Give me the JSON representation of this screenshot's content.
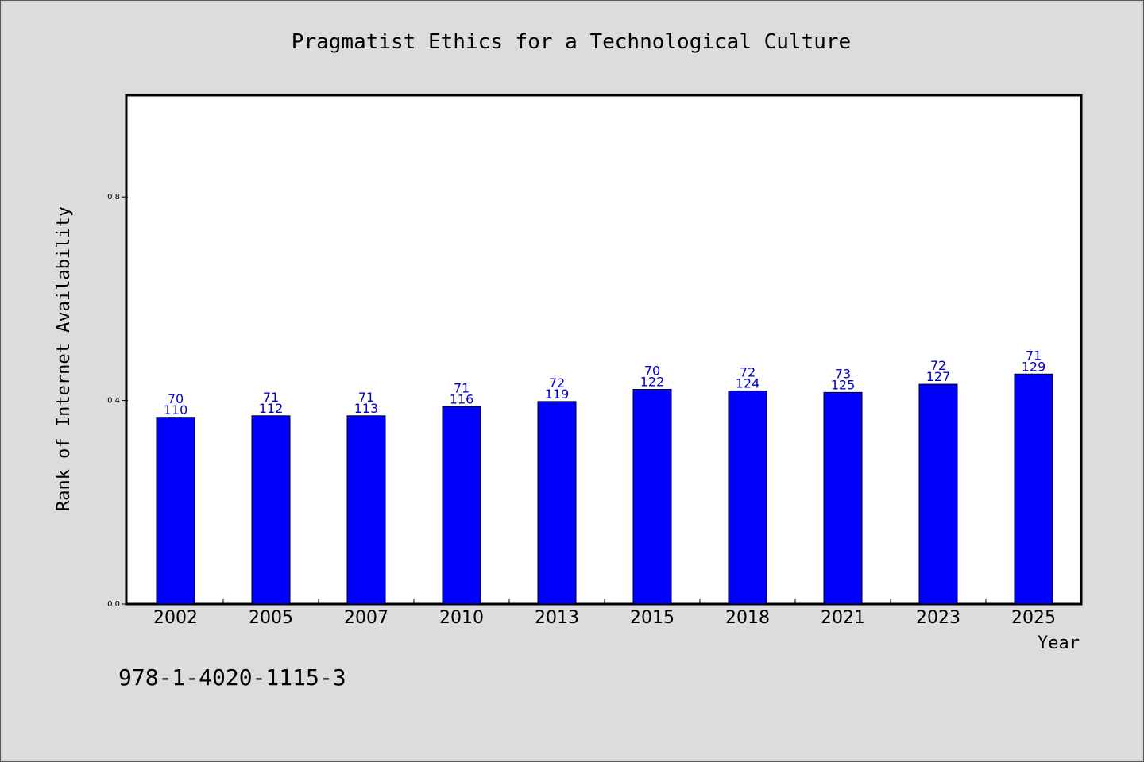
{
  "chart_data": {
    "type": "bar",
    "title": "Pragmatist Ethics for a Technological Culture",
    "xlabel": "Year",
    "ylabel": "Rank of Internet Availability",
    "footer": "978-1-4020-1115-3",
    "categories": [
      "2002",
      "2005",
      "2007",
      "2010",
      "2013",
      "2015",
      "2018",
      "2021",
      "2023",
      "2025"
    ],
    "values": [
      0.367,
      0.37,
      0.37,
      0.388,
      0.398,
      0.422,
      0.419,
      0.416,
      0.432,
      0.452
    ],
    "label_top": [
      "70",
      "71",
      "71",
      "71",
      "72",
      "70",
      "72",
      "73",
      "72",
      "71"
    ],
    "label_bottom": [
      "110",
      "112",
      "113",
      "116",
      "119",
      "122",
      "124",
      "125",
      "127",
      "129"
    ],
    "y_ticks": [
      {
        "value": 0.0,
        "label": "0.0"
      },
      {
        "value": 0.4,
        "label": "0.4"
      },
      {
        "value": 0.8,
        "label": "0.8"
      }
    ],
    "ylim": [
      0,
      1.0
    ],
    "grid": false,
    "colors": {
      "bar": "#0000ff",
      "data_label": "#0000cc",
      "background": "#dcdcdc",
      "plot_background": "#ffffff"
    }
  }
}
